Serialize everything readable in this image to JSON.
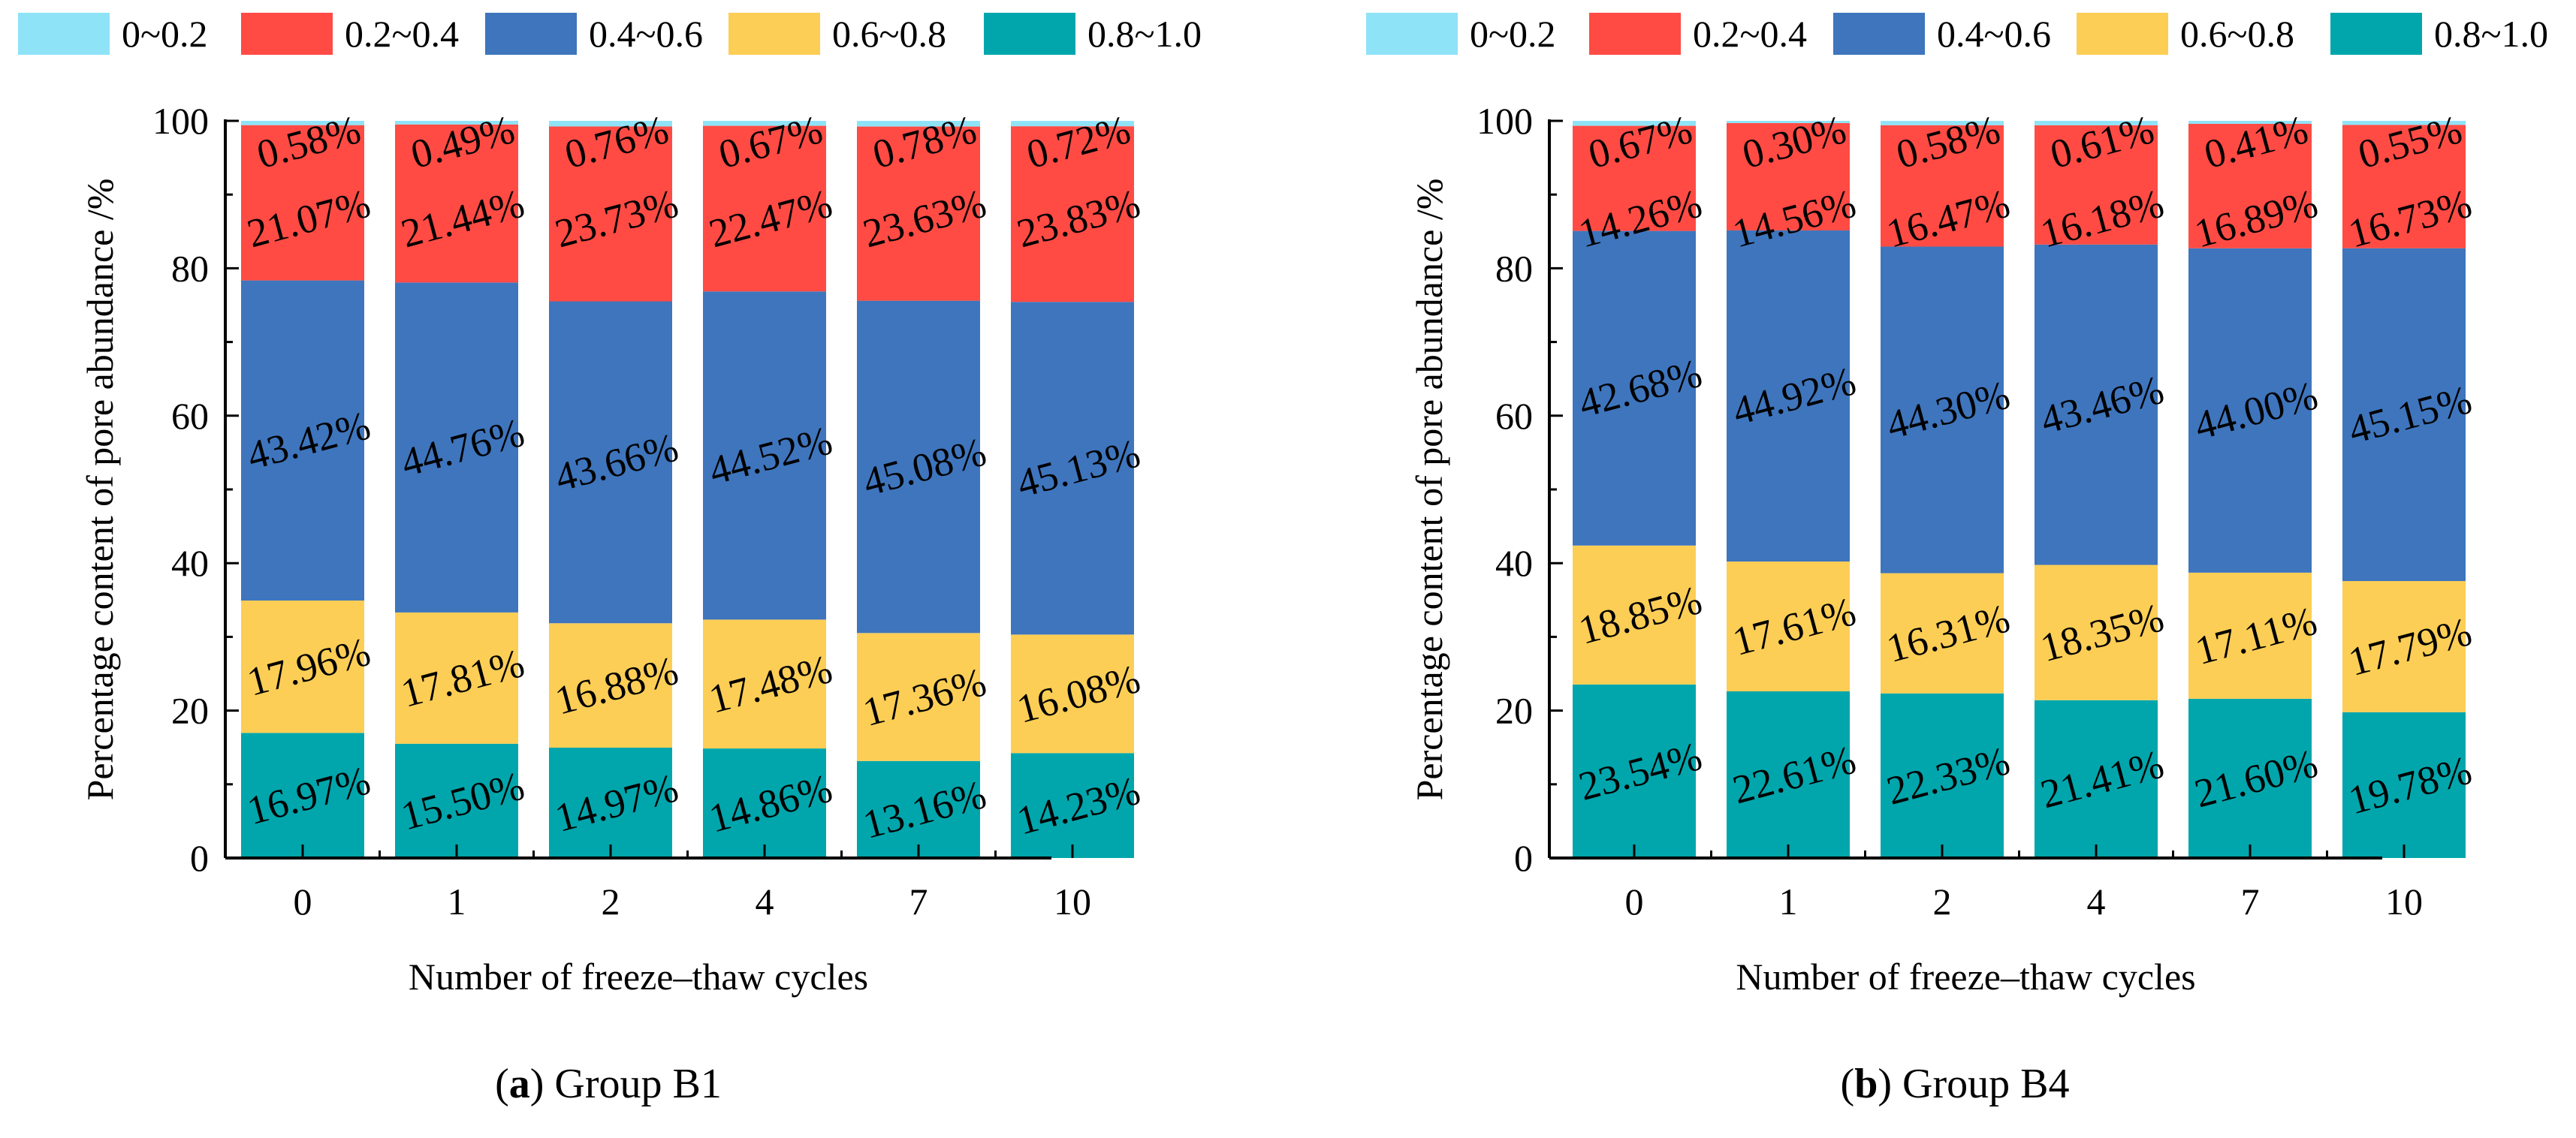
{
  "chart_data": [
    {
      "type": "bar",
      "stacked": true,
      "caption_letter": "a",
      "caption_text": "Group B1",
      "xlabel": "Number of freeze–thaw cycles",
      "ylabel": "Percentage content of pore abundance /%",
      "ylim": [
        0,
        100
      ],
      "yticks": [
        "0",
        "20",
        "40",
        "60",
        "80",
        "100"
      ],
      "legend_position": "top",
      "categories": [
        "0",
        "1",
        "2",
        "4",
        "7",
        "10"
      ],
      "series": [
        {
          "name": "0.8~1.0",
          "color": "#00A6AC",
          "values": [
            16.97,
            15.5,
            14.97,
            14.86,
            13.16,
            14.23
          ],
          "labels": [
            "16.97%",
            "15.50%",
            "14.97%",
            "14.86%",
            "13.16%",
            "14.23%"
          ]
        },
        {
          "name": "0.6~0.8",
          "color": "#FDCE55",
          "values": [
            17.96,
            17.81,
            16.88,
            17.48,
            17.36,
            16.08
          ],
          "labels": [
            "17.96%",
            "17.81%",
            "16.88%",
            "17.48%",
            "17.36%",
            "16.08%"
          ]
        },
        {
          "name": "0.4~0.6",
          "color": "#3E75BD",
          "values": [
            43.42,
            44.76,
            43.66,
            44.52,
            45.08,
            45.13
          ],
          "labels": [
            "43.42%",
            "44.76%",
            "43.66%",
            "44.52%",
            "45.08%",
            "45.13%"
          ]
        },
        {
          "name": "0.2~0.4",
          "color": "#FF4B44",
          "values": [
            21.07,
            21.44,
            23.73,
            22.47,
            23.63,
            23.83
          ],
          "labels": [
            "21.07%",
            "21.44%",
            "23.73%",
            "22.47%",
            "23.63%",
            "23.83%"
          ]
        },
        {
          "name": "0~0.2",
          "color": "#8FE3F7",
          "values": [
            0.58,
            0.49,
            0.76,
            0.67,
            0.78,
            0.72
          ],
          "labels": [
            "0.58%",
            "0.49%",
            "0.76%",
            "0.67%",
            "0.78%",
            "0.72%"
          ]
        }
      ]
    },
    {
      "type": "bar",
      "stacked": true,
      "caption_letter": "b",
      "caption_text": "Group B4",
      "xlabel": "Number of freeze–thaw cycles",
      "ylabel": "Percentage content of pore abundance /%",
      "ylim": [
        0,
        100
      ],
      "yticks": [
        "0",
        "20",
        "40",
        "60",
        "80",
        "100"
      ],
      "legend_position": "top",
      "categories": [
        "0",
        "1",
        "2",
        "4",
        "7",
        "10"
      ],
      "series": [
        {
          "name": "0.8~1.0",
          "color": "#00A6AC",
          "values": [
            23.54,
            22.61,
            22.33,
            21.41,
            21.6,
            19.78
          ],
          "labels": [
            "23.54%",
            "22.61%",
            "22.33%",
            "21.41%",
            "21.60%",
            "19.78%"
          ]
        },
        {
          "name": "0.6~0.8",
          "color": "#FDCE55",
          "values": [
            18.85,
            17.61,
            16.31,
            18.35,
            17.11,
            17.79
          ],
          "labels": [
            "18.85%",
            "17.61%",
            "16.31%",
            "18.35%",
            "17.11%",
            "17.79%"
          ]
        },
        {
          "name": "0.4~0.6",
          "color": "#3E75BD",
          "values": [
            42.68,
            44.92,
            44.3,
            43.46,
            44.0,
            45.15
          ],
          "labels": [
            "42.68%",
            "44.92%",
            "44.30%",
            "43.46%",
            "44.00%",
            "45.15%"
          ]
        },
        {
          "name": "0.2~0.4",
          "color": "#FF4B44",
          "values": [
            14.26,
            14.56,
            16.47,
            16.18,
            16.89,
            16.73
          ],
          "labels": [
            "14.26%",
            "14.56%",
            "16.47%",
            "16.18%",
            "16.89%",
            "16.73%"
          ]
        },
        {
          "name": "0~0.2",
          "color": "#8FE3F7",
          "values": [
            0.67,
            0.3,
            0.58,
            0.61,
            0.41,
            0.55
          ],
          "labels": [
            "0.67%",
            "0.30%",
            "0.58%",
            "0.61%",
            "0.41%",
            "0.55%"
          ]
        }
      ]
    }
  ]
}
